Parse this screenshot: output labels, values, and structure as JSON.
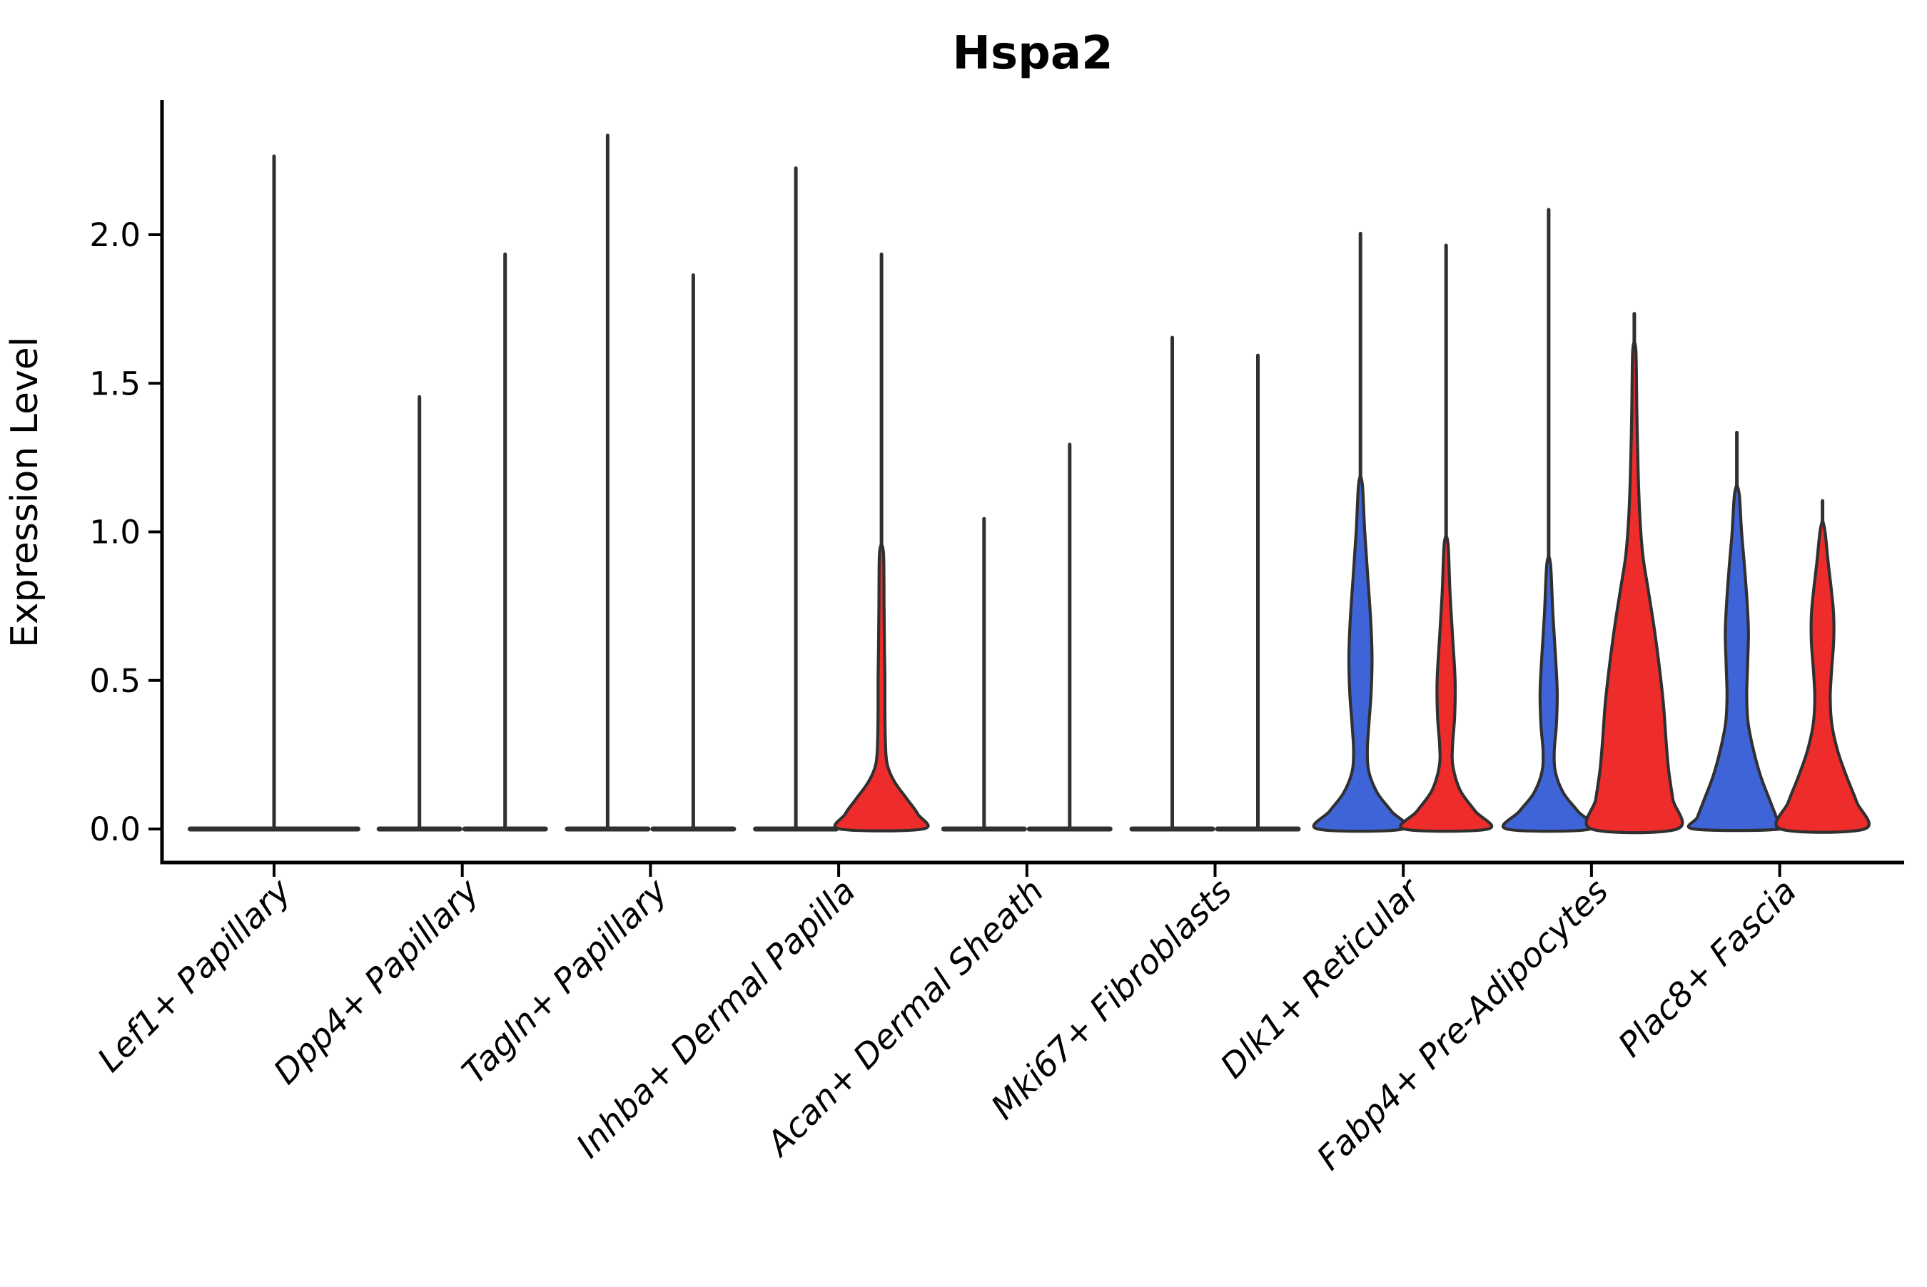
{
  "chart_data": {
    "type": "violin",
    "title": "Hspa2",
    "ylabel": "Expression Level",
    "xlabel": "",
    "ylim": [
      0,
      2.45
    ],
    "yticks": [
      0,
      0.5,
      1.0,
      1.5,
      2.0
    ],
    "ytick_labels": [
      "0.0",
      "0.5",
      "1.0",
      "1.5",
      "2.0"
    ],
    "grid": false,
    "legend": "none",
    "x_tick_rotation_deg": 45,
    "colors": {
      "blue": "#3e64d8",
      "red": "#ee2c2c",
      "outline": "#303030"
    },
    "description": "Split violin plot of Hspa2 expression per fibroblast subtype; most violins collapse to a flat base at 0 with a thin spike to the maximum expressed cell; Dlk1+, Fabp4+, Plac8+ (and Inhba+ right) show filled density bodies near 0.",
    "categories": [
      {
        "label": "Lef1+ Papillary",
        "violins": [
          {
            "side": "center",
            "fill": null,
            "max": 2.27,
            "half_width": 121,
            "shape": null
          }
        ]
      },
      {
        "label": "Dpp4+ Papillary",
        "violins": [
          {
            "side": "left",
            "fill": null,
            "max": 1.46,
            "half_width": 60,
            "shape": null
          },
          {
            "side": "right",
            "fill": null,
            "max": 1.94,
            "half_width": 60,
            "shape": null
          }
        ]
      },
      {
        "label": "Tagln+ Papillary",
        "violins": [
          {
            "side": "left",
            "fill": null,
            "max": 2.34,
            "half_width": 60,
            "shape": null
          },
          {
            "side": "right",
            "fill": null,
            "max": 1.87,
            "half_width": 60,
            "shape": null
          }
        ]
      },
      {
        "label": "Inhba+ Dermal Papilla",
        "violins": [
          {
            "side": "left",
            "fill": null,
            "max": 2.23,
            "half_width": 60,
            "shape": null
          },
          {
            "side": "right",
            "fill": "#ee2c2c",
            "max": 1.94,
            "half_width": 60,
            "shape": [
              [
                0.92,
                0.05
              ],
              [
                0.75,
                0.06
              ],
              [
                0.6,
                0.07
              ],
              [
                0.5,
                0.08
              ],
              [
                0.4,
                0.08
              ],
              [
                0.3,
                0.09
              ],
              [
                0.22,
                0.13
              ],
              [
                0.16,
                0.3
              ],
              [
                0.1,
                0.6
              ],
              [
                0.05,
                0.85
              ],
              [
                0.0,
                0.97
              ]
            ]
          }
        ]
      },
      {
        "label": "Acan+ Dermal Sheath",
        "violins": [
          {
            "side": "left",
            "fill": null,
            "max": 1.05,
            "half_width": 60,
            "shape": null
          },
          {
            "side": "right",
            "fill": null,
            "max": 1.3,
            "half_width": 60,
            "shape": null
          }
        ]
      },
      {
        "label": "Mki67+ Fibroblasts",
        "violins": [
          {
            "side": "left",
            "fill": null,
            "max": 1.66,
            "half_width": 60,
            "shape": null
          },
          {
            "side": "right",
            "fill": null,
            "max": 1.6,
            "half_width": 60,
            "shape": null
          }
        ]
      },
      {
        "label": "Dlk1+ Reticular",
        "violins": [
          {
            "side": "left",
            "fill": "#3e64d8",
            "max": 2.01,
            "half_width": 60,
            "shape": [
              [
                1.15,
                0.05
              ],
              [
                1.0,
                0.1
              ],
              [
                0.85,
                0.17
              ],
              [
                0.7,
                0.24
              ],
              [
                0.58,
                0.27
              ],
              [
                0.46,
                0.25
              ],
              [
                0.34,
                0.19
              ],
              [
                0.26,
                0.16
              ],
              [
                0.19,
                0.2
              ],
              [
                0.12,
                0.4
              ],
              [
                0.06,
                0.72
              ],
              [
                0.0,
                1.0
              ]
            ]
          },
          {
            "side": "right",
            "fill": "#ee2c2c",
            "max": 1.97,
            "half_width": 60,
            "shape": [
              [
                0.95,
                0.05
              ],
              [
                0.8,
                0.09
              ],
              [
                0.65,
                0.15
              ],
              [
                0.5,
                0.21
              ],
              [
                0.38,
                0.2
              ],
              [
                0.28,
                0.15
              ],
              [
                0.21,
                0.16
              ],
              [
                0.13,
                0.33
              ],
              [
                0.06,
                0.68
              ],
              [
                0.0,
                0.98
              ]
            ]
          }
        ]
      },
      {
        "label": "Fabp4+ Pre-Adipocytes",
        "violins": [
          {
            "side": "left",
            "fill": "#3e64d8",
            "max": 2.09,
            "half_width": 60,
            "shape": [
              [
                0.88,
                0.05
              ],
              [
                0.72,
                0.1
              ],
              [
                0.58,
                0.16
              ],
              [
                0.46,
                0.2
              ],
              [
                0.35,
                0.18
              ],
              [
                0.26,
                0.13
              ],
              [
                0.19,
                0.16
              ],
              [
                0.12,
                0.35
              ],
              [
                0.06,
                0.68
              ],
              [
                0.0,
                0.98
              ]
            ]
          },
          {
            "side": "right",
            "fill": "#ee2c2c",
            "max": 1.74,
            "half_width": 60,
            "shape": [
              [
                1.6,
                0.04
              ],
              [
                1.4,
                0.06
              ],
              [
                1.2,
                0.09
              ],
              [
                1.05,
                0.13
              ],
              [
                0.92,
                0.2
              ],
              [
                0.8,
                0.33
              ],
              [
                0.68,
                0.46
              ],
              [
                0.55,
                0.58
              ],
              [
                0.42,
                0.68
              ],
              [
                0.3,
                0.74
              ],
              [
                0.2,
                0.8
              ],
              [
                0.1,
                0.9
              ],
              [
                0.0,
                1.0
              ]
            ]
          }
        ]
      },
      {
        "label": "Plac8+ Fascia",
        "violins": [
          {
            "side": "left",
            "fill": "#3e64d8",
            "max": 1.34,
            "half_width": 60,
            "shape": [
              [
                1.12,
                0.06
              ],
              [
                1.0,
                0.11
              ],
              [
                0.88,
                0.18
              ],
              [
                0.76,
                0.24
              ],
              [
                0.66,
                0.27
              ],
              [
                0.55,
                0.25
              ],
              [
                0.45,
                0.23
              ],
              [
                0.36,
                0.26
              ],
              [
                0.27,
                0.38
              ],
              [
                0.18,
                0.55
              ],
              [
                0.1,
                0.76
              ],
              [
                0.04,
                0.92
              ],
              [
                0.0,
                1.0
              ]
            ]
          },
          {
            "side": "right",
            "fill": "#ee2c2c",
            "max": 1.11,
            "half_width": 60,
            "shape": [
              [
                1.0,
                0.06
              ],
              [
                0.9,
                0.13
              ],
              [
                0.8,
                0.21
              ],
              [
                0.72,
                0.26
              ],
              [
                0.63,
                0.26
              ],
              [
                0.53,
                0.21
              ],
              [
                0.44,
                0.18
              ],
              [
                0.35,
                0.22
              ],
              [
                0.26,
                0.36
              ],
              [
                0.17,
                0.58
              ],
              [
                0.09,
                0.8
              ],
              [
                0.0,
                0.98
              ]
            ]
          }
        ]
      }
    ]
  }
}
